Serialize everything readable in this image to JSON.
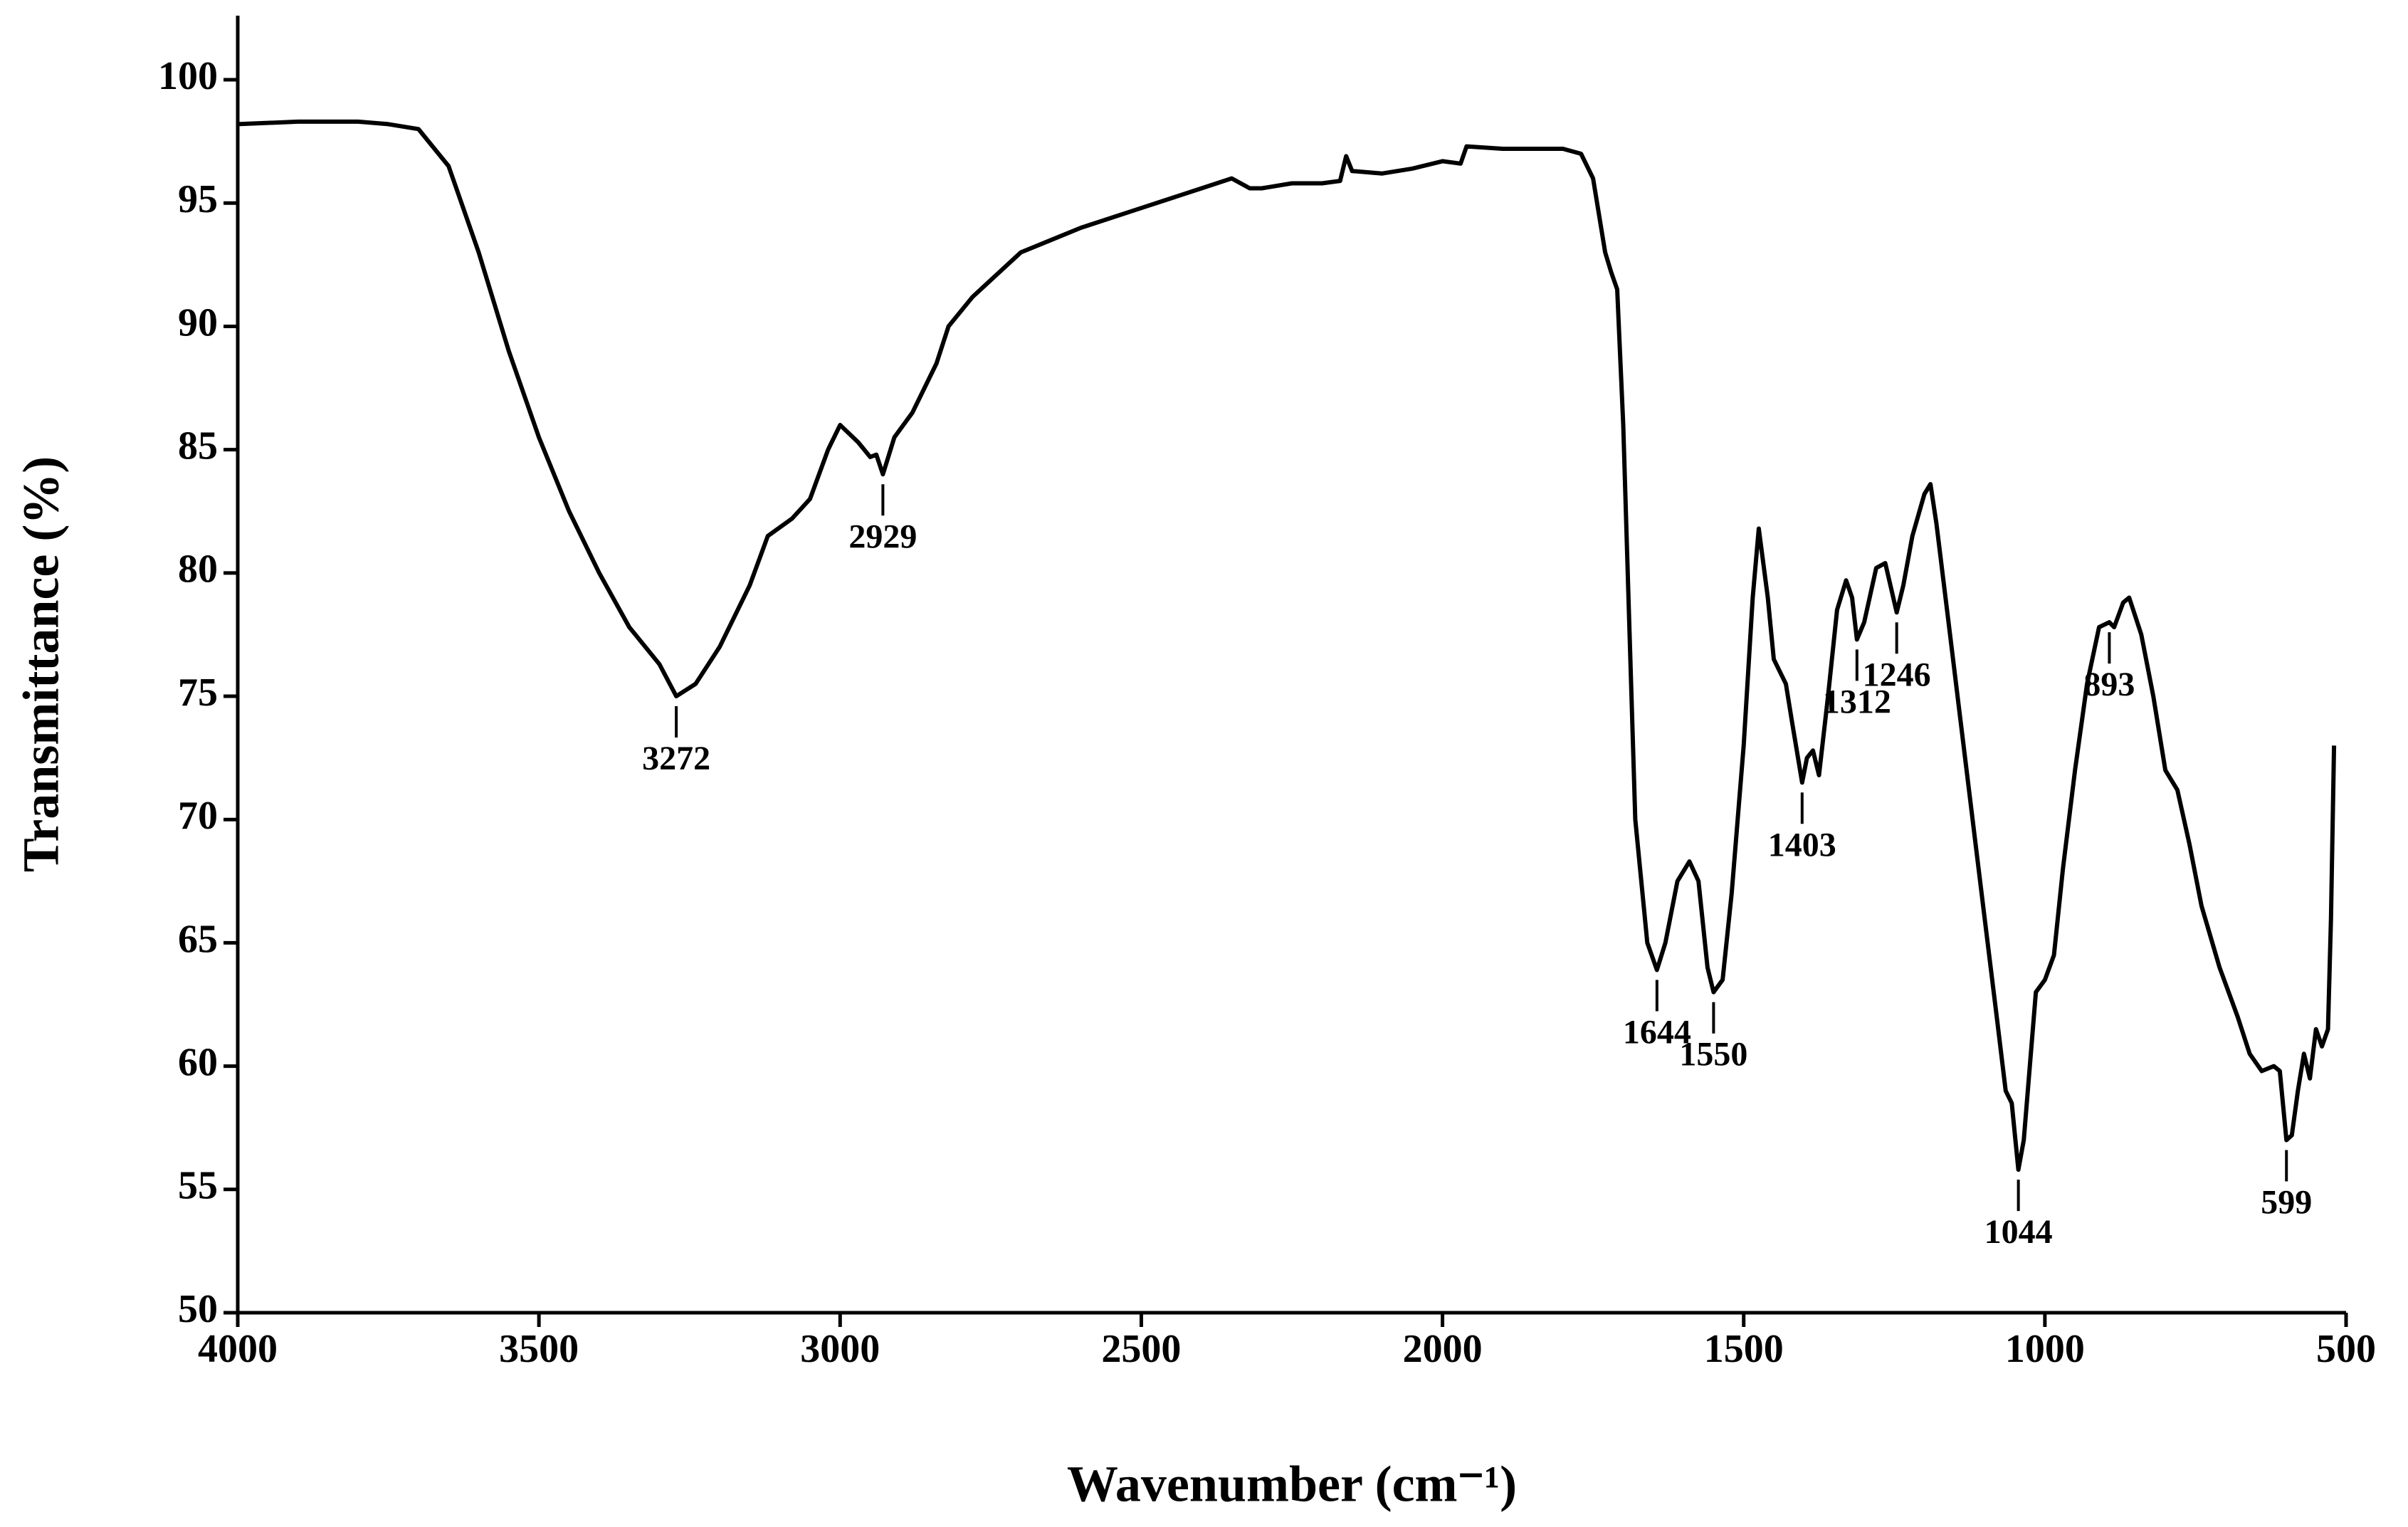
{
  "chart_data": {
    "type": "line",
    "x_label": "Wavenumber (cm⁻¹)",
    "y_label": "Transmittance (%)",
    "xlim": [
      4000,
      500
    ],
    "ylim": [
      50,
      102.6
    ],
    "xticks": [
      4000,
      3500,
      3000,
      2500,
      2000,
      1500,
      1000,
      500
    ],
    "yticks": [
      50,
      55,
      60,
      65,
      70,
      75,
      80,
      85,
      90,
      95,
      100
    ],
    "series": [
      {
        "color": "#000000",
        "x": [
          4000,
          3900,
          3800,
          3750,
          3700,
          3650,
          3600,
          3550,
          3500,
          3450,
          3400,
          3350,
          3300,
          3272,
          3240,
          3200,
          3150,
          3120,
          3080,
          3050,
          3020,
          3000,
          2970,
          2950,
          2940,
          2929,
          2910,
          2880,
          2860,
          2840,
          2820,
          2780,
          2700,
          2650,
          2600,
          2500,
          2400,
          2350,
          2320,
          2300,
          2250,
          2200,
          2170,
          2160,
          2150,
          2100,
          2050,
          2000,
          1970,
          1960,
          1900,
          1800,
          1770,
          1750,
          1730,
          1720,
          1710,
          1700,
          1690,
          1680,
          1660,
          1644,
          1630,
          1610,
          1590,
          1575,
          1560,
          1550,
          1535,
          1520,
          1500,
          1485,
          1475,
          1460,
          1450,
          1430,
          1420,
          1403,
          1395,
          1385,
          1375,
          1360,
          1345,
          1330,
          1320,
          1312,
          1300,
          1280,
          1265,
          1246,
          1235,
          1220,
          1200,
          1190,
          1180,
          1160,
          1140,
          1120,
          1100,
          1080,
          1065,
          1055,
          1044,
          1035,
          1025,
          1015,
          1000,
          985,
          970,
          950,
          930,
          910,
          893,
          885,
          870,
          860,
          840,
          820,
          800,
          780,
          760,
          740,
          710,
          680,
          660,
          640,
          620,
          610,
          599,
          590,
          580,
          570,
          560,
          550,
          540,
          530,
          525,
          520
        ],
        "values": [
          98.2,
          98.3,
          98.3,
          98.2,
          98.0,
          96.5,
          93,
          89,
          85.5,
          82.5,
          80,
          77.8,
          76.3,
          75.0,
          75.5,
          77,
          79.5,
          81.5,
          82.2,
          83,
          85,
          86,
          85.3,
          84.7,
          84.8,
          84.0,
          85.5,
          86.5,
          87.5,
          88.5,
          90,
          91.2,
          93,
          93.5,
          94,
          94.8,
          95.6,
          96.0,
          95.6,
          95.6,
          95.8,
          95.8,
          95.9,
          96.9,
          96.3,
          96.2,
          96.4,
          96.7,
          96.6,
          97.3,
          97.2,
          97.2,
          97.0,
          96.0,
          93,
          92.2,
          91.5,
          86,
          78,
          70,
          65,
          63.9,
          65,
          67.5,
          68.3,
          67.5,
          64,
          63.0,
          63.5,
          67,
          73,
          79,
          81.8,
          79,
          76.5,
          75.5,
          74,
          71.5,
          72.5,
          72.8,
          71.8,
          75,
          78.5,
          79.7,
          79,
          77.3,
          78,
          80.2,
          80.4,
          78.4,
          79.5,
          81.5,
          83.2,
          83.6,
          82,
          78,
          74,
          70,
          66,
          62,
          59,
          58.5,
          55.8,
          57,
          60,
          63,
          63.5,
          64.5,
          68,
          72,
          75.5,
          77.8,
          78.0,
          77.8,
          78.8,
          79.0,
          77.5,
          75,
          72,
          71.2,
          69,
          66.5,
          64,
          62,
          60.5,
          59.8,
          60,
          59.8,
          57.0,
          57.2,
          59,
          60.5,
          59.5,
          61.5,
          60.8,
          61.5,
          66,
          73
        ]
      }
    ],
    "annotations": [
      {
        "x": 3272,
        "y": 75.0
      },
      {
        "x": 2929,
        "y": 84.0
      },
      {
        "x": 1644,
        "y": 63.9
      },
      {
        "x": 1550,
        "y": 63.0
      },
      {
        "x": 1403,
        "y": 71.5
      },
      {
        "x": 1312,
        "y": 77.3
      },
      {
        "x": 1246,
        "y": 78.4
      },
      {
        "x": 1044,
        "y": 55.8
      },
      {
        "x": 893,
        "y": 78.0
      },
      {
        "x": 599,
        "y": 57.0
      }
    ]
  }
}
